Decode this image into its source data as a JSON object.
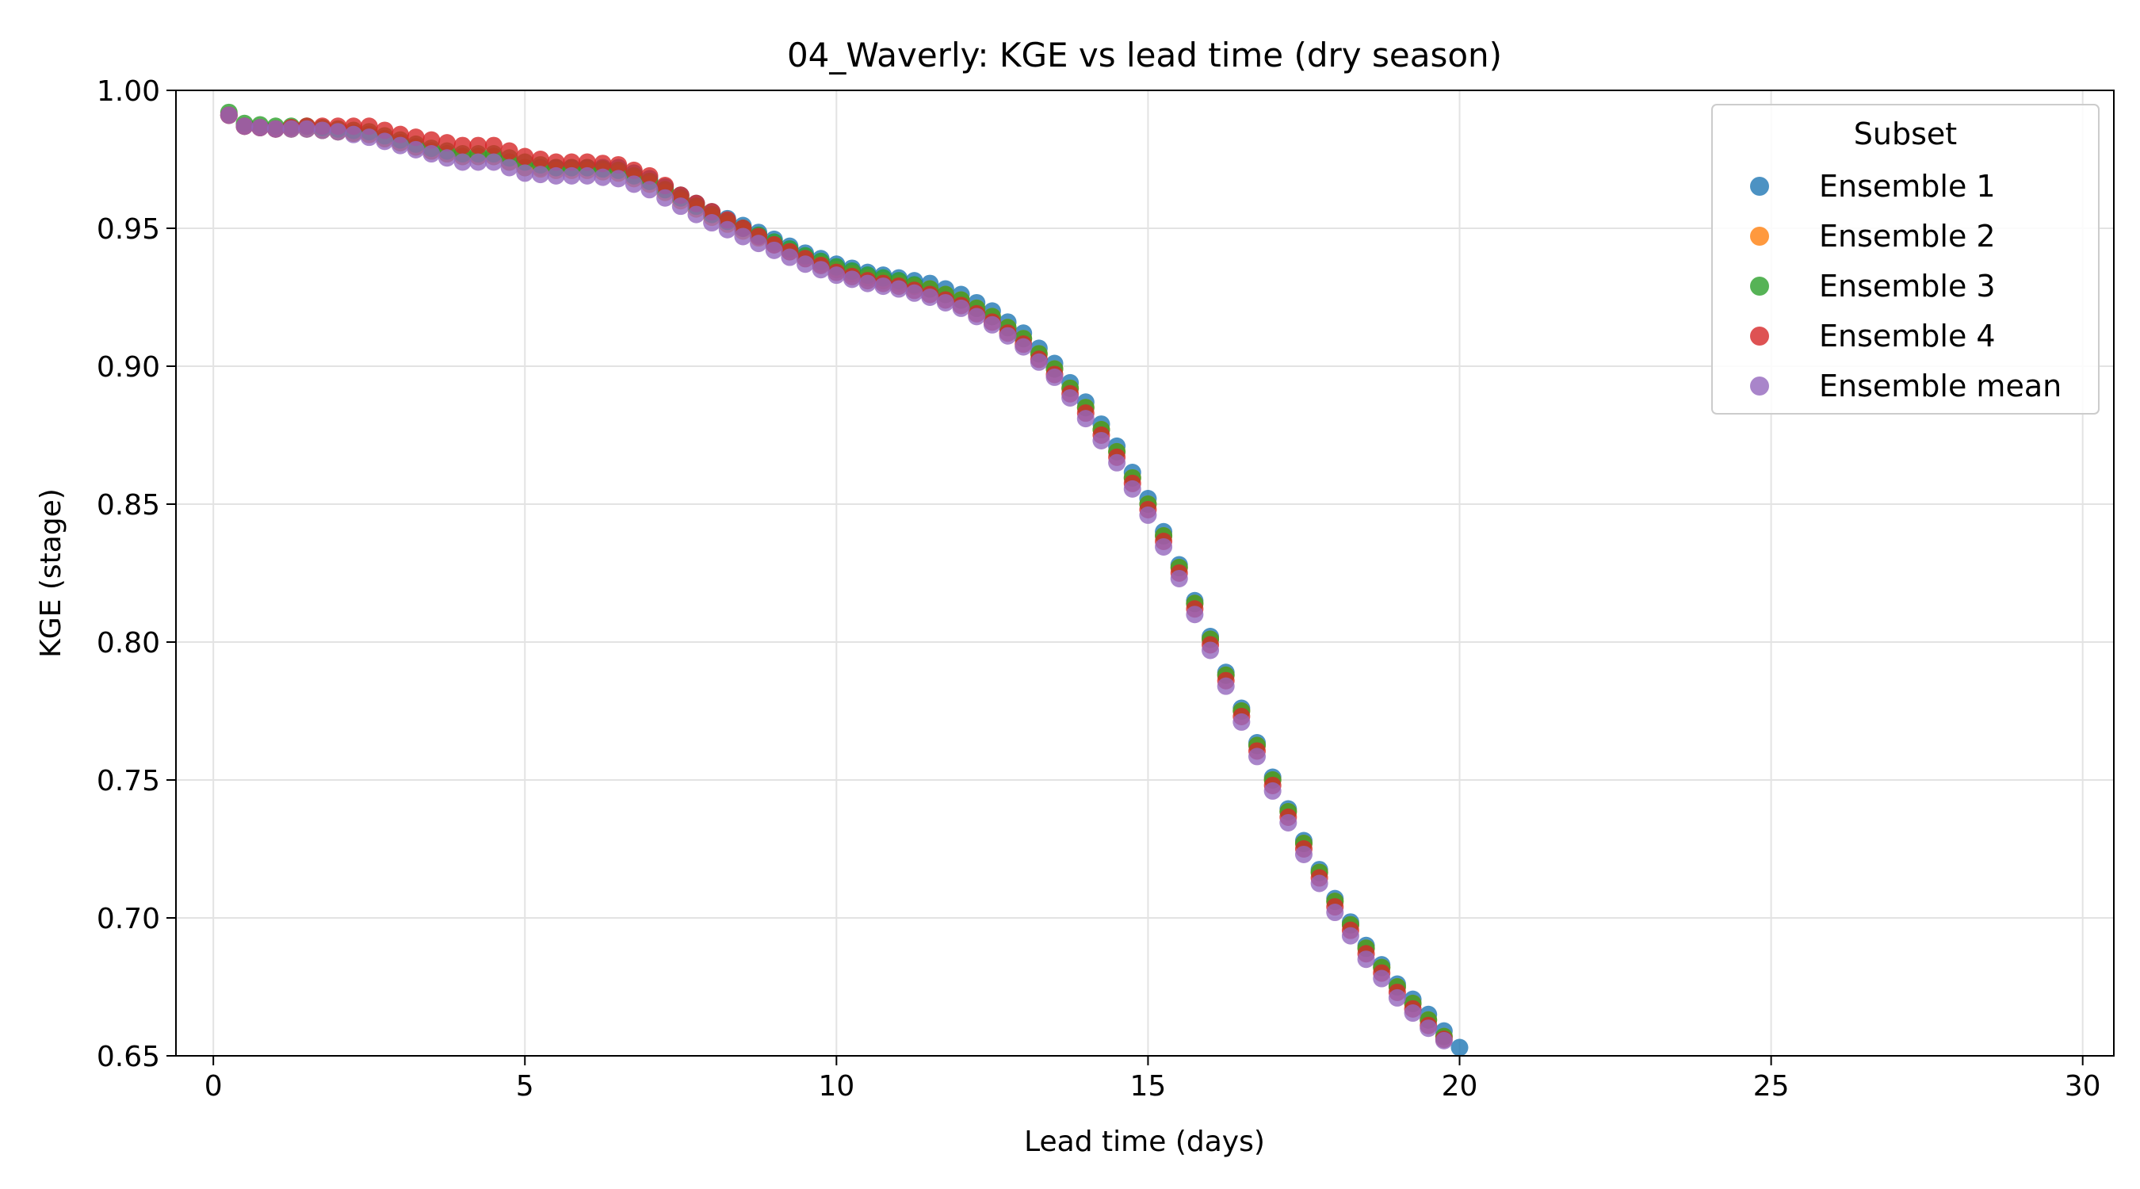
{
  "chart_data": {
    "type": "scatter",
    "title": "04_Waverly: KGE vs lead time (dry season)",
    "xlabel": "Lead time (days)",
    "ylabel": "KGE (stage)",
    "xlim": [
      -0.6,
      30.5
    ],
    "ylim": [
      0.65,
      1.0
    ],
    "xticks": [
      0,
      5,
      10,
      15,
      20,
      25,
      30
    ],
    "yticks": [
      0.65,
      0.7,
      0.75,
      0.8,
      0.85,
      0.9,
      0.95,
      1.0
    ],
    "ytick_labels": [
      "0.65",
      "0.70",
      "0.75",
      "0.80",
      "0.85",
      "0.90",
      "0.95",
      "1.00"
    ],
    "grid": true,
    "legend": {
      "title": "Subset",
      "placement": "top-right"
    },
    "x_step_days": 0.25,
    "base_curve": {
      "x": [
        0.25,
        0.5,
        1,
        1.5,
        2,
        2.5,
        3,
        3.5,
        4,
        4.5,
        5,
        5.5,
        6,
        6.5,
        7,
        7.5,
        8,
        8.5,
        9,
        9.5,
        10,
        10.5,
        11,
        11.5,
        12,
        12.5,
        13,
        13.5,
        14,
        14.5,
        15,
        15.5,
        16,
        16.5,
        17,
        17.5,
        18,
        18.5,
        19,
        19.5,
        20
      ],
      "y": [
        0.991,
        0.987,
        0.986,
        0.986,
        0.985,
        0.984,
        0.981,
        0.978,
        0.976,
        0.976,
        0.972,
        0.97,
        0.97,
        0.969,
        0.965,
        0.959,
        0.953,
        0.948,
        0.943,
        0.938,
        0.934,
        0.931,
        0.929,
        0.926,
        0.922,
        0.916,
        0.908,
        0.897,
        0.883,
        0.867,
        0.848,
        0.825,
        0.799,
        0.773,
        0.748,
        0.725,
        0.704,
        0.687,
        0.673,
        0.661,
        0.651
      ]
    },
    "series": [
      {
        "name": "Ensemble 1",
        "color": "#1f77b4",
        "offset": [
          0,
          0,
          0,
          0,
          0,
          0,
          0,
          0,
          0,
          0,
          0,
          0.002,
          0.002,
          0.003,
          0.003,
          0.003,
          0.003,
          0.003,
          0.003,
          0.003,
          0.003,
          0.003,
          0.003,
          0.004,
          0.004,
          0.004,
          0.004,
          0.004,
          0.004,
          0.004,
          0.004,
          0.003,
          0.003,
          0.003,
          0.003,
          0.003,
          0.003,
          0.003,
          0.003,
          0.004,
          0.002
        ],
        "n_points": 80
      },
      {
        "name": "Ensemble 2",
        "color": "#ff7f0e",
        "offset": [
          0,
          0,
          0,
          0,
          0,
          0,
          0,
          0,
          0,
          0,
          0,
          0.001,
          0.001,
          0.001,
          0.001,
          0.001,
          0.001,
          0.001,
          0.001,
          0.001,
          0.001,
          0.001,
          0.001,
          0.002,
          0.002,
          0.002,
          0.002,
          0.002,
          0.002,
          0.002,
          0.002,
          0.002,
          0.002,
          0.002,
          0.002,
          0.002,
          0.002,
          0.002,
          0.002,
          0.002,
          0
        ],
        "n_points": 79
      },
      {
        "name": "Ensemble 3",
        "color": "#2ca02c",
        "offset": [
          0.001,
          0.001,
          0.001,
          0.001,
          0.001,
          0.001,
          0.001,
          0.001,
          0.001,
          0.001,
          0.002,
          0.002,
          0.002,
          0.002,
          0.002,
          0.002,
          0.002,
          0.002,
          0.002,
          0.002,
          0.002,
          0.002,
          0.002,
          0.002,
          0.002,
          0.002,
          0.002,
          0.002,
          0.002,
          0.002,
          0.002,
          0.002,
          0.002,
          0.002,
          0.002,
          0.002,
          0.002,
          0.002,
          0.002,
          0.002,
          0
        ],
        "n_points": 79
      },
      {
        "name": "Ensemble 4",
        "color": "#d62728",
        "offset": [
          0,
          0,
          0,
          0.001,
          0.002,
          0.003,
          0.003,
          0.004,
          0.004,
          0.004,
          0.004,
          0.004,
          0.004,
          0.004,
          0.004,
          0.003,
          0.003,
          0.002,
          0.001,
          0.001,
          0,
          0,
          0,
          0,
          0,
          0,
          0,
          0,
          0,
          0,
          0,
          0,
          0,
          0,
          0,
          0,
          0,
          0,
          0,
          0,
          0
        ],
        "n_points": 79
      },
      {
        "name": "Ensemble mean",
        "color": "#9467bd",
        "offset": [
          0,
          0,
          0,
          0,
          0,
          -0.001,
          -0.001,
          -0.001,
          -0.002,
          -0.002,
          -0.002,
          -0.001,
          -0.001,
          -0.001,
          -0.001,
          -0.001,
          -0.001,
          -0.001,
          -0.001,
          -0.001,
          -0.001,
          -0.001,
          -0.001,
          -0.001,
          -0.001,
          -0.001,
          -0.001,
          -0.001,
          -0.002,
          -0.002,
          -0.002,
          -0.002,
          -0.002,
          -0.002,
          -0.002,
          -0.002,
          -0.002,
          -0.002,
          -0.002,
          -0.001,
          0
        ],
        "n_points": 79
      }
    ]
  }
}
